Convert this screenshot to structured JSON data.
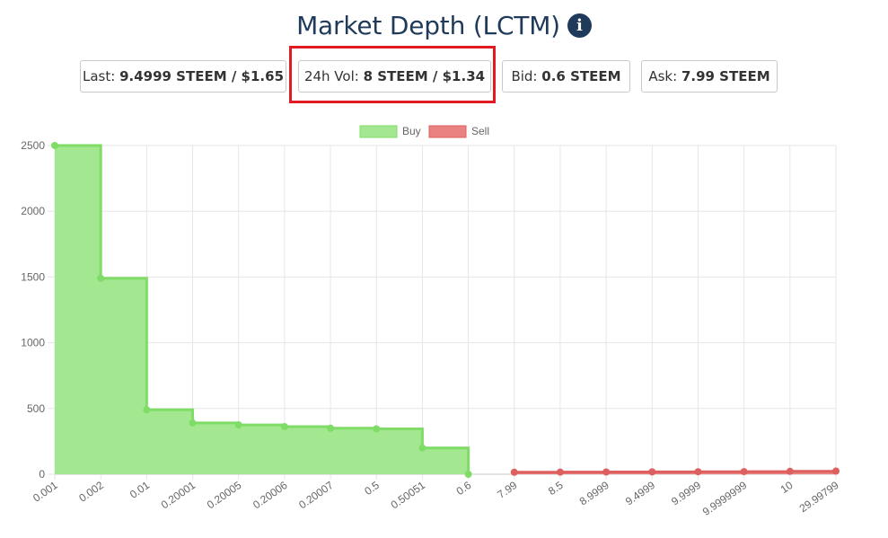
{
  "header": {
    "title": "Market Depth (LCTM)",
    "info_icon": "info-circle-icon"
  },
  "stats": {
    "last_label": "Last:",
    "last_value": "9.4999 STEEM / $1.65",
    "vol_label": "24h Vol:",
    "vol_value": "8 STEEM / $1.34",
    "bid_label": "Bid:",
    "bid_value": "0.6 STEEM",
    "ask_label": "Ask:",
    "ask_value": "7.99 STEEM"
  },
  "colors": {
    "title": "#1f3a5a",
    "buy_fill": "#a3e891",
    "buy_line": "#7fdc67",
    "sell_fill": "#ea8282",
    "sell_line": "#dd5f5f",
    "highlight": "#e01b24"
  },
  "chart_data": {
    "type": "area",
    "title": "",
    "xlabel": "",
    "ylabel": "",
    "ylim": [
      0,
      2500
    ],
    "y_ticks": [
      0,
      500,
      1000,
      1500,
      2000,
      2500
    ],
    "grid": true,
    "legend_position": "top-center",
    "categories": [
      "0.001",
      "0.002",
      "0.01",
      "0.20001",
      "0.20005",
      "0.20006",
      "0.20007",
      "0.5",
      "0.50051",
      "0.6",
      "7.99",
      "8.5",
      "8.9999",
      "9.4999",
      "9.9999",
      "9.9999999",
      "10",
      "29.99799"
    ],
    "series": [
      {
        "name": "Buy",
        "values": [
          2500,
          1490,
          490,
          390,
          375,
          362,
          350,
          345,
          200,
          0,
          null,
          null,
          null,
          null,
          null,
          null,
          null,
          null
        ]
      },
      {
        "name": "Sell",
        "values": [
          null,
          null,
          null,
          null,
          null,
          null,
          null,
          null,
          null,
          null,
          15,
          16,
          17,
          18,
          19,
          20,
          22,
          24
        ]
      }
    ]
  }
}
